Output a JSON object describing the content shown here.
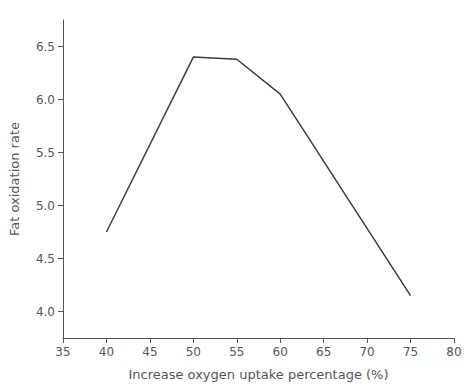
{
  "chart_data": {
    "type": "line",
    "x": [
      40,
      50,
      55,
      60,
      75
    ],
    "values": [
      4.75,
      6.4,
      6.38,
      6.05,
      4.15
    ],
    "color": "#3d3d3d",
    "xlabel": "Increase oxygen uptake percentage (%)",
    "ylabel": "Fat oxidation rate",
    "xlim": [
      35,
      80
    ],
    "xticks": [
      35,
      40,
      45,
      50,
      55,
      60,
      65,
      70,
      75,
      80
    ],
    "ylim": [
      3.75,
      6.75
    ],
    "yticks": [
      {
        "value": 4,
        "label": "4.0"
      },
      4.5,
      {
        "value": 5,
        "label": "5.0"
      },
      5.5,
      {
        "value": 6,
        "label": "6.0"
      },
      6.5
    ],
    "grid": false
  }
}
